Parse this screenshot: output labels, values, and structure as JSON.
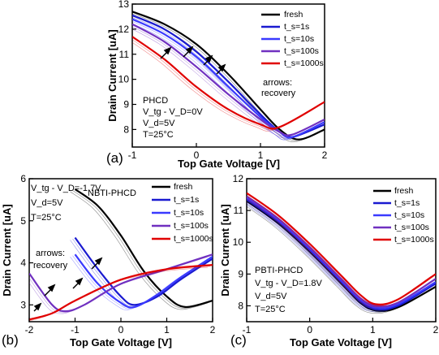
{
  "panels": {
    "a": {
      "label": "(a)",
      "annotation_lines": [
        "PHCD",
        "V_tg - V_D=0V",
        "V_d=5V",
        "T=25°C"
      ],
      "arrows_note": [
        "arrows:",
        "recovery"
      ]
    },
    "b": {
      "label": "(b)",
      "annotation_lines": [
        "V_tg - V_D=-1.7V",
        "V_d=5V",
        "T=25°C"
      ],
      "title_text": "NBTI-PHCD",
      "arrows_note": [
        "arrows:",
        "recovery"
      ]
    },
    "c": {
      "label": "(c)",
      "annotation_lines": [
        "PBTI-PHCD",
        "V_tg - V_D=1.8V",
        "V_d=5V",
        "T=25°C"
      ]
    }
  },
  "chart_data": [
    {
      "type": "line",
      "panel": "a",
      "xlabel": "Top Gate Voltage [V]",
      "ylabel": "Drain Current [uA]",
      "xlim": [
        -1,
        2
      ],
      "ylim": [
        7.3,
        13
      ],
      "xticks": [
        -1,
        0,
        1,
        2
      ],
      "yticks": [
        8,
        9,
        10,
        11,
        12,
        13
      ],
      "legend": [
        "fresh",
        "t_s=1s",
        "t_s=10s",
        "t_s=100s",
        "t_s=1000s"
      ],
      "legend_position": "top-right",
      "series": [
        {
          "name": "fresh",
          "color": "#000000",
          "x": [
            -1,
            -0.5,
            0,
            0.5,
            1.0,
            1.3,
            1.6,
            2.0
          ],
          "y": [
            12.7,
            12.2,
            11.4,
            10.2,
            8.8,
            8.0,
            7.6,
            8.0
          ]
        },
        {
          "name": "t_s=1s",
          "color": "#1a1ad0",
          "x": [
            -1,
            -0.5,
            0,
            0.5,
            1.0,
            1.3,
            1.5,
            2.0
          ],
          "y": [
            12.55,
            12.0,
            11.1,
            9.9,
            8.6,
            7.9,
            7.7,
            8.2
          ]
        },
        {
          "name": "t_s=10s",
          "color": "#3a3aff",
          "x": [
            -1,
            -0.5,
            0,
            0.5,
            1.0,
            1.3,
            1.5,
            2.0
          ],
          "y": [
            12.4,
            11.8,
            10.9,
            9.7,
            8.5,
            7.9,
            7.7,
            8.3
          ]
        },
        {
          "name": "t_s=100s",
          "color": "#7030c0",
          "x": [
            -1,
            -0.5,
            0,
            0.5,
            1.0,
            1.3,
            1.5,
            2.0
          ],
          "y": [
            12.2,
            11.5,
            10.5,
            9.4,
            8.4,
            7.9,
            7.8,
            8.4
          ]
        },
        {
          "name": "t_s=1000s",
          "color": "#e00000",
          "x": [
            -1,
            -0.5,
            0,
            0.5,
            1.0,
            1.3,
            2.0
          ],
          "y": [
            11.7,
            10.8,
            9.7,
            8.8,
            8.2,
            8.1,
            9.1
          ]
        }
      ]
    },
    {
      "type": "line",
      "panel": "b",
      "xlabel": "Top Gate Voltage [V]",
      "ylabel": "Drain Current [uA]",
      "xlim": [
        -2,
        2
      ],
      "ylim": [
        2.6,
        6
      ],
      "xticks": [
        -2,
        -1,
        0,
        1,
        2
      ],
      "yticks": [
        3,
        4,
        5,
        6
      ],
      "legend": [
        "fresh",
        "t_s=1s",
        "t_s=10s",
        "t_s=100s",
        "t_s=1000s"
      ],
      "legend_position": "top-right",
      "series": [
        {
          "name": "fresh",
          "color": "#000000",
          "x": [
            -1,
            -0.5,
            0,
            0.5,
            1.0,
            1.4,
            2.0
          ],
          "y": [
            5.75,
            5.35,
            4.65,
            3.8,
            3.2,
            2.95,
            3.1
          ]
        },
        {
          "name": "t_s=1s",
          "color": "#1a1ad0",
          "x": [
            -1,
            -0.5,
            0,
            0.3,
            0.8,
            1.3,
            2.0
          ],
          "y": [
            4.6,
            3.85,
            3.2,
            3.0,
            3.2,
            3.6,
            4.1
          ]
        },
        {
          "name": "t_s=10s",
          "color": "#3a3aff",
          "x": [
            -1,
            -0.5,
            0,
            0.3,
            0.8,
            1.3,
            2.0
          ],
          "y": [
            4.2,
            3.5,
            3.05,
            2.95,
            3.25,
            3.65,
            4.15
          ]
        },
        {
          "name": "t_s=100s",
          "color": "#7030c0",
          "x": [
            -2,
            -1.5,
            -1.2,
            -0.8,
            0,
            1.0,
            2.0
          ],
          "y": [
            3.75,
            3.0,
            2.85,
            3.0,
            3.5,
            3.85,
            4.2
          ]
        },
        {
          "name": "t_s=1000s",
          "color": "#e00000",
          "x": [
            -2,
            -1.5,
            -1.0,
            0,
            1.0,
            2.0
          ],
          "y": [
            2.65,
            2.8,
            3.1,
            3.6,
            3.85,
            3.95
          ]
        }
      ]
    },
    {
      "type": "line",
      "panel": "c",
      "xlabel": "Top Gate Voltage [V]",
      "ylabel": "Drain Current [uA]",
      "xlim": [
        -1,
        2
      ],
      "ylim": [
        7.5,
        12
      ],
      "xticks": [
        -1,
        0,
        1,
        2
      ],
      "yticks": [
        8,
        9,
        10,
        11,
        12
      ],
      "legend": [
        "fresh",
        "t_s=1s",
        "t_s=10s",
        "t_s=100s",
        "t_s=1000s"
      ],
      "legend_position": "top-right",
      "series": [
        {
          "name": "fresh",
          "color": "#000000",
          "x": [
            -1,
            -0.5,
            0,
            0.5,
            0.8,
            1.05,
            1.4,
            2.0
          ],
          "y": [
            11.3,
            10.6,
            9.7,
            8.7,
            8.1,
            7.85,
            7.95,
            8.6
          ]
        },
        {
          "name": "t_s=1s",
          "color": "#1a1ad0",
          "x": [
            -1,
            -0.5,
            0,
            0.5,
            0.8,
            1.05,
            1.4,
            2.0
          ],
          "y": [
            11.35,
            10.65,
            9.75,
            8.75,
            8.15,
            7.9,
            8.0,
            8.7
          ]
        },
        {
          "name": "t_s=10s",
          "color": "#3a3aff",
          "x": [
            -1,
            -0.5,
            0,
            0.5,
            0.8,
            1.05,
            1.4,
            2.0
          ],
          "y": [
            11.4,
            10.7,
            9.8,
            8.8,
            8.2,
            7.95,
            8.05,
            8.75
          ]
        },
        {
          "name": "t_s=100s",
          "color": "#7030c0",
          "x": [
            -1,
            -0.5,
            0,
            0.5,
            0.8,
            1.05,
            1.4,
            2.0
          ],
          "y": [
            11.45,
            10.75,
            9.85,
            8.85,
            8.25,
            8.0,
            8.1,
            8.85
          ]
        },
        {
          "name": "t_s=1000s",
          "color": "#e00000",
          "x": [
            -1,
            -0.5,
            0,
            0.5,
            0.8,
            1.05,
            1.4,
            2.0
          ],
          "y": [
            11.55,
            10.85,
            9.95,
            8.95,
            8.35,
            8.05,
            8.2,
            9.0
          ]
        }
      ]
    }
  ]
}
